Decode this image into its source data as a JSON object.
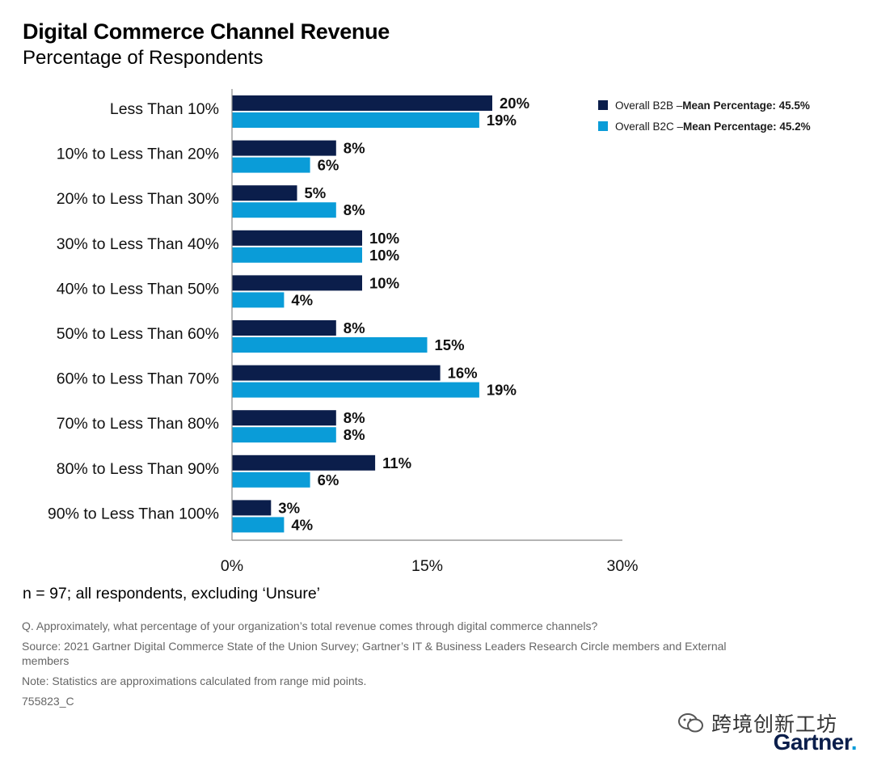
{
  "header": {
    "title": "Digital Commerce Channel Revenue",
    "subtitle": "Percentage of Respondents"
  },
  "legend": {
    "items": [
      {
        "label": "Overall B2B – ",
        "emphasis": "Mean Percentage: 45.5%",
        "color": "#0b1e4b"
      },
      {
        "label": "Overall B2C – ",
        "emphasis": "Mean Percentage: 45.2%",
        "color": "#0a9cd8"
      }
    ]
  },
  "chart_data": {
    "type": "bar",
    "orientation": "horizontal",
    "categories": [
      "Less Than 10%",
      "10% to Less Than 20%",
      "20% to Less Than 30%",
      "30% to Less Than 40%",
      "40% to Less Than 50%",
      "50% to Less Than 60%",
      "60% to Less Than 70%",
      "70% to Less Than 80%",
      "80% to Less Than 90%",
      "90% to Less Than 100%"
    ],
    "series": [
      {
        "name": "Overall B2B",
        "color": "#0b1e4b",
        "values": [
          20,
          8,
          5,
          10,
          10,
          8,
          16,
          8,
          11,
          3
        ]
      },
      {
        "name": "Overall B2C",
        "color": "#0a9cd8",
        "values": [
          19,
          6,
          8,
          10,
          4,
          15,
          19,
          8,
          6,
          4
        ]
      }
    ],
    "value_suffix": "%",
    "xlim": [
      0,
      30
    ],
    "xticks": [
      0,
      15,
      30
    ],
    "xtick_labels": [
      "0%",
      "15%",
      "30%"
    ],
    "grid": false,
    "legend_position": "top-right"
  },
  "notes": {
    "sample": "n = 97; all respondents, excluding ‘Unsure’",
    "question": "Q. Approximately, what percentage of your organization’s total revenue comes through digital commerce channels?",
    "source": "Source: 2021 Gartner Digital Commerce State of the Union Survey; Gartner’s IT & Business Leaders Research Circle members and External members",
    "method": "Note: Statistics are approximations calculated from range mid points.",
    "id": "755823_C"
  },
  "watermark": {
    "text": "跨境创新工坊"
  },
  "brand": {
    "name": "Gartner",
    "dot": "."
  }
}
